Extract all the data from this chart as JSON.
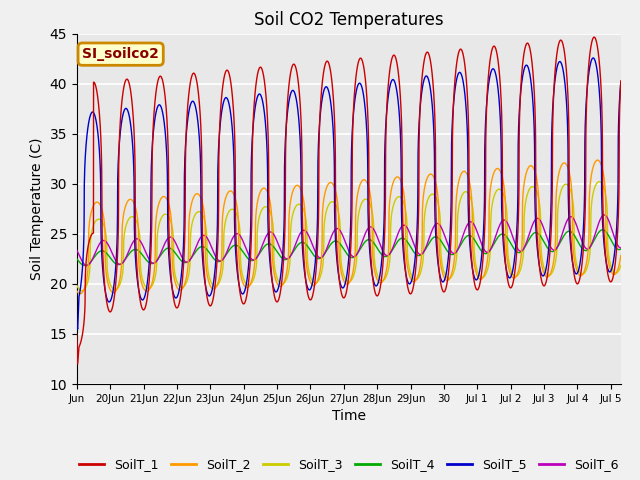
{
  "title": "Soil CO2 Temperatures",
  "xlabel": "Time",
  "ylabel": "Soil Temperature (C)",
  "ylim": [
    10,
    45
  ],
  "yticks": [
    10,
    15,
    20,
    25,
    30,
    35,
    40,
    45
  ],
  "annotation_text": "SI_soilco2",
  "annotation_box_color": "#ffffcc",
  "annotation_border_color": "#cc8800",
  "annotation_text_color": "#880000",
  "legend_entries": [
    "SoilT_1",
    "SoilT_2",
    "SoilT_3",
    "SoilT_4",
    "SoilT_5",
    "SoilT_6"
  ],
  "line_colors": [
    "#cc0000",
    "#ff9900",
    "#cccc00",
    "#00aa00",
    "#0000cc",
    "#bb00bb"
  ],
  "background_color": "#e8e8e8",
  "plot_bg_color": "#e8e8e8",
  "grid_color": "#ffffff",
  "start_day": 19.0,
  "end_day": 35.3,
  "n_points": 5000
}
